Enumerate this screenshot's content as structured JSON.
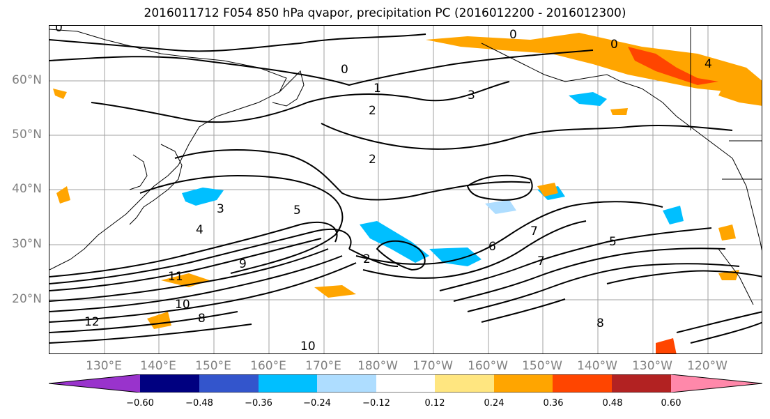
{
  "title": "2016011712 F054 850 hPa qvapor, precipitation PC (2016012200 - 2016012300)",
  "map": {
    "lat_labels": [
      "60°N",
      "50°N",
      "40°N",
      "30°N",
      "20°N"
    ],
    "lon_labels": [
      "130°E",
      "140°E",
      "150°E",
      "160°E",
      "170°E",
      "180°W",
      "170°W",
      "160°W",
      "150°W",
      "140°W",
      "130°W",
      "120°W"
    ],
    "contour_labels": [
      "0",
      "0",
      "0",
      "0",
      "1",
      "2",
      "2",
      "3",
      "3",
      "4",
      "5",
      "6",
      "7",
      "8",
      "9",
      "10",
      "11",
      "12",
      "2",
      "4",
      "5",
      "7",
      "8",
      "10"
    ]
  },
  "colorbar": {
    "colors": [
      "#9933cc",
      "#000080",
      "#3355cc",
      "#00bfff",
      "#aeddff",
      "#ffffff",
      "#ffe680",
      "#ffa500",
      "#ff4500",
      "#b22222",
      "#ff88aa"
    ],
    "ticks": [
      "−0.60",
      "−0.48",
      "−0.36",
      "−0.24",
      "−0.12",
      "0.12",
      "0.24",
      "0.36",
      "0.48",
      "0.60"
    ]
  }
}
